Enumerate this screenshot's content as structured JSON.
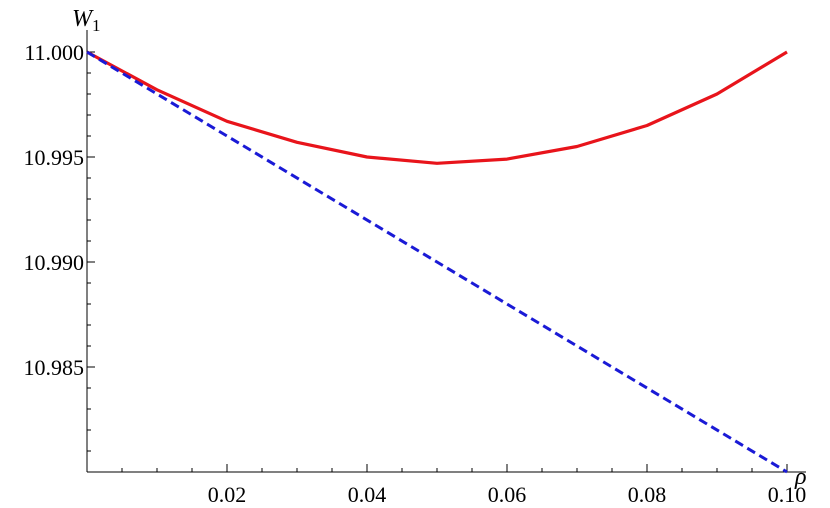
{
  "chart_data": {
    "type": "line",
    "title": "",
    "xlabel": "ρ",
    "ylabel": "W",
    "ylabel_subscript": "1",
    "xlim": [
      0,
      0.1
    ],
    "ylim": [
      10.98,
      11.0
    ],
    "x_ticks": [
      0.02,
      0.04,
      0.06,
      0.08,
      0.1
    ],
    "x_tick_labels": [
      "0.02",
      "0.04",
      "0.06",
      "0.08",
      "0.10"
    ],
    "y_ticks": [
      10.985,
      10.99,
      10.995,
      11.0
    ],
    "y_tick_labels": [
      "10.985",
      "10.990",
      "10.995",
      "11.000"
    ],
    "grid": false,
    "series": [
      {
        "color": "#e8141b",
        "dash": "solid",
        "x": [
          0,
          0.01,
          0.02,
          0.03,
          0.04,
          0.05,
          0.06,
          0.07,
          0.08,
          0.09,
          0.1
        ],
        "y": [
          11.0,
          10.9982,
          10.9967,
          10.9957,
          10.995,
          10.9947,
          10.9949,
          10.9955,
          10.9965,
          10.998,
          11.0
        ]
      },
      {
        "color": "#1a1ad6",
        "dash": "dashed",
        "x": [
          0,
          0.1
        ],
        "y": [
          11.0,
          10.98
        ]
      }
    ]
  }
}
